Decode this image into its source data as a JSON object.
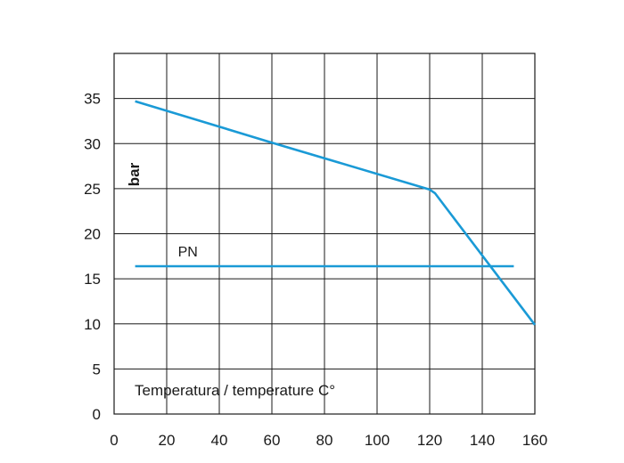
{
  "chart_data": {
    "type": "line",
    "title": "",
    "xlabel": "Temperatura / temperature C°",
    "ylabel": "bar",
    "xlim": [
      0,
      160
    ],
    "ylim": [
      0,
      40
    ],
    "x_ticks": [
      0,
      20,
      40,
      60,
      80,
      100,
      120,
      140,
      160
    ],
    "y_ticks": [
      0,
      5,
      10,
      15,
      20,
      25,
      30,
      35
    ],
    "grid": true,
    "line_color": "#1a9ad6",
    "grid_color": "#1a1a1a",
    "series": [
      {
        "x": [
          8,
          60,
          120,
          122,
          160
        ],
        "y": [
          34.7,
          30.1,
          24.9,
          24.5,
          9.9
        ]
      },
      {
        "name": "PN",
        "x": [
          8,
          152
        ],
        "y": [
          16.4,
          16.4
        ]
      }
    ]
  }
}
